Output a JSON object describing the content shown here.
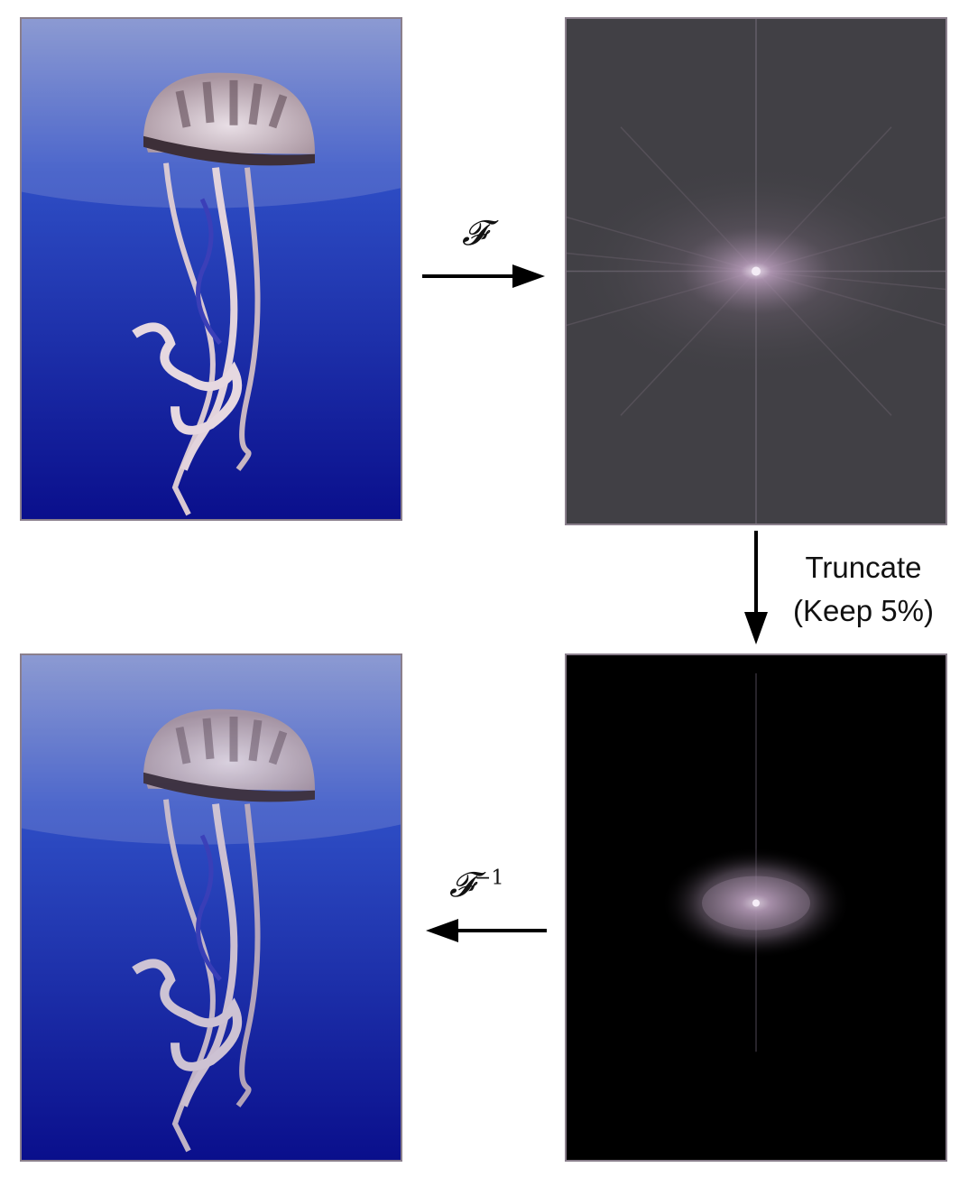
{
  "steps": {
    "forward": {
      "symbol": "𝓕"
    },
    "truncate": {
      "line1": "Truncate",
      "line2": "(Keep 5%)"
    },
    "inverse": {
      "symbol": "𝓕",
      "exponent": "−1"
    }
  },
  "colors": {
    "ocean_top": "#7f8fcf",
    "ocean_deep": "#0a0f8c",
    "spectrum_bg": "#414045",
    "truncated_bg": "#000000",
    "spectrum_glow": "#b59ab8",
    "panel_border": "#8a7f8c",
    "arrow": "#000000"
  }
}
